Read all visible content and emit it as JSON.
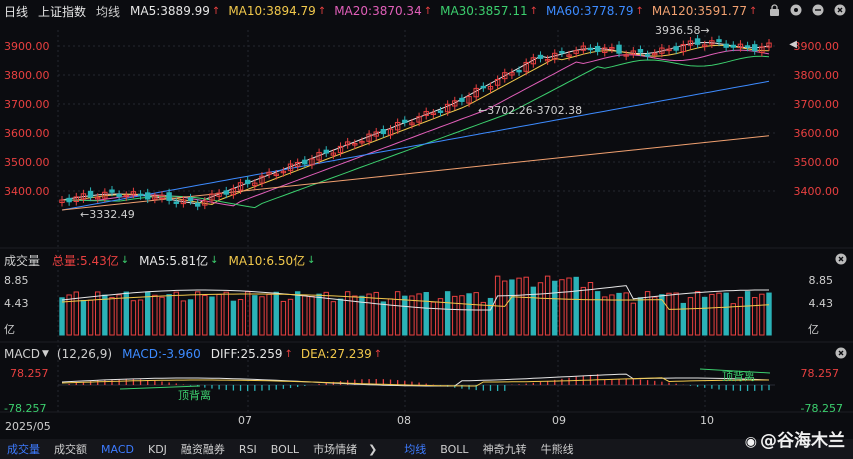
{
  "header": {
    "period": "日线",
    "index_name": "上证指数",
    "ma_toggle": "均线",
    "ma": [
      {
        "label": "MA5:3889.99",
        "color": "#e6e6e6",
        "trend": "up"
      },
      {
        "label": "MA10:3894.79",
        "color": "#f2c94c",
        "trend": "up"
      },
      {
        "label": "MA20:3870.34",
        "color": "#e15fb9",
        "trend": "up"
      },
      {
        "label": "MA30:3857.11",
        "color": "#3ccf6e",
        "trend": "up"
      },
      {
        "label": "MA60:3778.79",
        "color": "#3d8bff",
        "trend": "up"
      },
      {
        "label": "MA120:3591.77",
        "color": "#f0a070",
        "trend": "up"
      }
    ]
  },
  "price_axis": {
    "ticks": [
      "3900.00",
      "3800.00",
      "3700.00",
      "3600.00",
      "3500.00",
      "3400.00"
    ],
    "right_ticks": [
      "3900.00",
      "3800.00",
      "3700.00",
      "3600.00",
      "3500.00",
      "3400.00"
    ]
  },
  "annotations": {
    "high": "3936.58",
    "mid_range": "3702.26-3702.38",
    "low": "3332.49"
  },
  "volume": {
    "title": "成交量",
    "total_label": "总量:5.43亿",
    "ma5_label": "MA5:5.81亿",
    "ma10_label": "MA10:6.50亿",
    "top_tick": "8.85",
    "mid_tick": "4.43",
    "unit": "亿"
  },
  "macd": {
    "title": "MACD",
    "params": "(12,26,9)",
    "macd_label": "MACD:-3.960",
    "diff_label": "DIFF:25.259",
    "dea_label": "DEA:27.239",
    "top_tick": "78.257",
    "bottom_tick": "-78.257",
    "divergence_1": "顶背离",
    "divergence_2": "顶背离"
  },
  "x_axis": {
    "labels": [
      "2025/05",
      "07",
      "08",
      "09",
      "10"
    ]
  },
  "bottom_tabs": [
    "成交量",
    "成交额",
    "MACD",
    "KDJ",
    "融资融券",
    "RSI",
    "BOLL",
    "市场情绪",
    "均线",
    "BOLL",
    "神奇九转",
    "牛熊线"
  ],
  "watermark": "@谷海木兰",
  "colors": {
    "up": "#e84040",
    "down": "#2bb3b8",
    "bg": "#0b0c10",
    "active_tab": "#3d7bff"
  }
}
